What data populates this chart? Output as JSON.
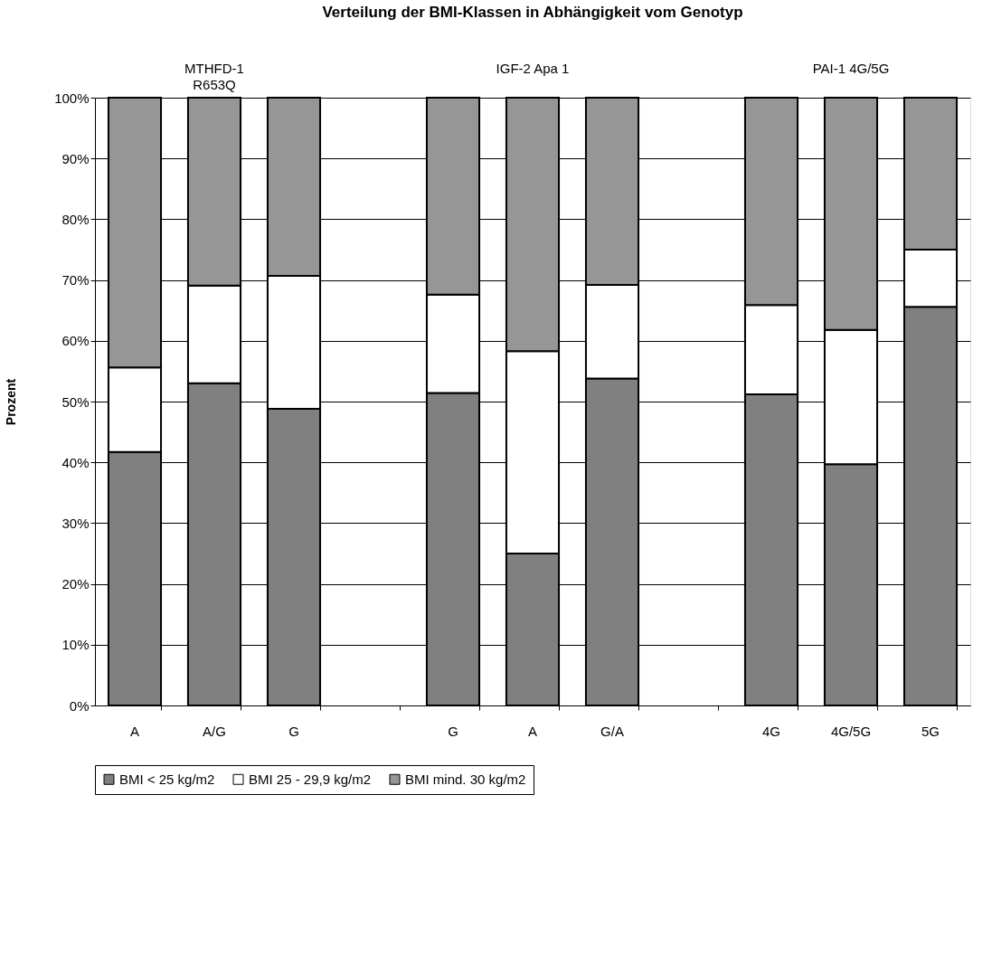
{
  "chart_data": {
    "type": "bar",
    "stacked": true,
    "title": "Verteilung der BMI-Klassen in Abhängigkeit vom Genotyp",
    "ylabel": "Prozent",
    "categories": [
      "A",
      "A/G",
      "G",
      null,
      "G",
      "A",
      "G/A",
      null,
      "4G",
      "4G/5G",
      "5G"
    ],
    "series": [
      {
        "name": "BMI < 25 kg/m2",
        "color": "#808080",
        "values": [
          41.7,
          53.0,
          48.8,
          null,
          51.4,
          25.0,
          53.8,
          null,
          51.2,
          39.7,
          65.6
        ]
      },
      {
        "name": "BMI 25 - 29,9 kg/m2",
        "color": "#ffffff",
        "values": [
          13.9,
          16.1,
          21.9,
          null,
          16.2,
          33.3,
          15.4,
          null,
          14.7,
          22.1,
          9.4
        ]
      },
      {
        "name": "BMI mind. 30 kg/m2",
        "color": "#969696",
        "values": [
          44.4,
          30.9,
          29.3,
          null,
          32.4,
          41.7,
          30.8,
          null,
          34.1,
          38.2,
          25.0
        ]
      }
    ],
    "annotations": [
      "MTHFD-1\nR653Q",
      "IGF-2 Apa 1",
      "PAI-1 4G/5G"
    ],
    "ylim": [
      0,
      100
    ],
    "yticks": [
      {
        "value": 0,
        "label": "0%"
      },
      {
        "value": 10,
        "label": "10%"
      },
      {
        "value": 20,
        "label": "20%"
      },
      {
        "value": 30,
        "label": "30%"
      },
      {
        "value": 40,
        "label": "40%"
      },
      {
        "value": 50,
        "label": "50%"
      },
      {
        "value": 60,
        "label": "60%"
      },
      {
        "value": 70,
        "label": "70%"
      },
      {
        "value": 80,
        "label": "80%"
      },
      {
        "value": 90,
        "label": "90%"
      },
      {
        "value": 100,
        "label": "100%"
      }
    ],
    "grid": "y",
    "legend": "bottom"
  }
}
